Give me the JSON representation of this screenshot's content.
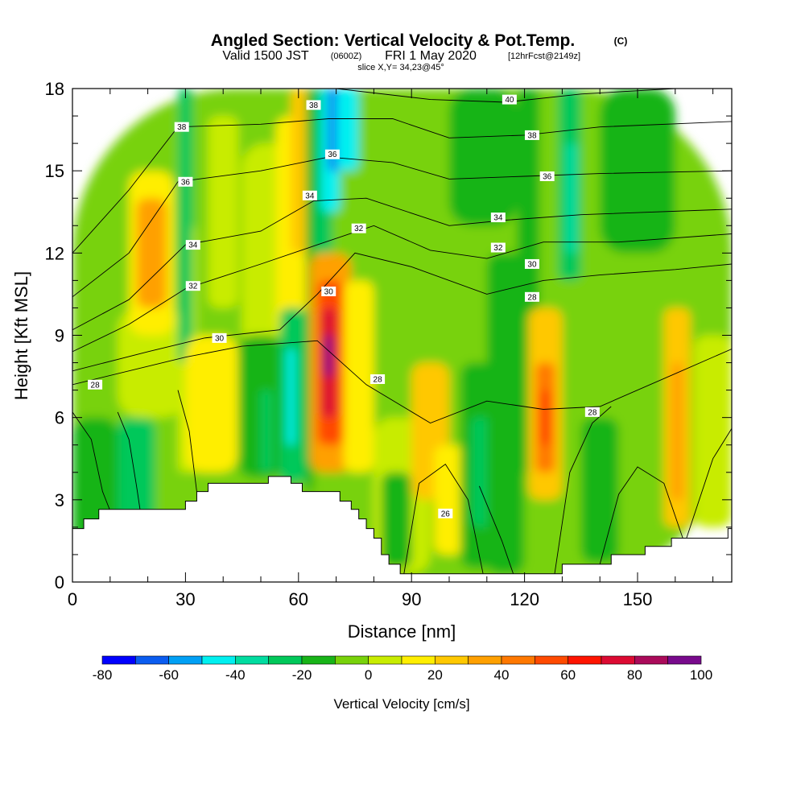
{
  "header": {
    "title_main": "Angled Section: Vertical Velocity & Pot.Temp.",
    "title_unit": "(C)",
    "valid_a": "Valid 1500 JST",
    "valid_b": "(0600Z)",
    "valid_c": "FRI 1 May 2020",
    "valid_d": "[12hrFcst@2149z]",
    "slice": "slice X,Y= 34,23@45°"
  },
  "chart_data": {
    "type": "heatmap",
    "xlabel": "Distance [nm]",
    "ylabel": "Height [Kft MSL]",
    "xlim": [
      0,
      175
    ],
    "ylim": [
      0,
      18
    ],
    "x_ticks": [
      "0",
      "30",
      "60",
      "90",
      "120",
      "150"
    ],
    "y_ticks": [
      "0",
      "3",
      "6",
      "9",
      "12",
      "15",
      "18"
    ],
    "colorbar": {
      "title": "Vertical Velocity [cm/s]",
      "ticks": [
        "-80",
        "-60",
        "-40",
        "-20",
        "0",
        "20",
        "40",
        "60",
        "80",
        "100"
      ],
      "levels": [
        -80,
        -70,
        -60,
        -50,
        -40,
        -30,
        -20,
        -10,
        0,
        10,
        20,
        30,
        40,
        50,
        60,
        70,
        80,
        90,
        100
      ],
      "colors": [
        "#0000ff",
        "#0a5cf0",
        "#00a0f5",
        "#00f0f0",
        "#00dca0",
        "#00c85a",
        "#18b418",
        "#78d20a",
        "#c8ec00",
        "#ffee00",
        "#ffc800",
        "#ffa000",
        "#ff7800",
        "#ff4a00",
        "#ff1400",
        "#dc0a32",
        "#aa0a5a",
        "#780a8c"
      ]
    },
    "terrain_kft": [
      [
        0,
        1.95
      ],
      [
        3,
        2.3
      ],
      [
        7,
        2.65
      ],
      [
        30,
        2.95
      ],
      [
        33,
        3.3
      ],
      [
        36,
        3.6
      ],
      [
        52,
        3.85
      ],
      [
        58,
        3.6
      ],
      [
        61,
        3.3
      ],
      [
        71,
        2.95
      ],
      [
        74,
        2.65
      ],
      [
        76,
        2.3
      ],
      [
        78,
        1.95
      ],
      [
        80,
        1.6
      ],
      [
        82,
        1.0
      ],
      [
        84,
        0.65
      ],
      [
        87,
        0.3
      ],
      [
        129,
        0.3
      ],
      [
        130,
        0.65
      ],
      [
        142,
        0.65
      ],
      [
        143,
        1.0
      ],
      [
        151,
        1.0
      ],
      [
        152,
        1.3
      ],
      [
        159,
        1.6
      ],
      [
        173,
        1.6
      ],
      [
        174,
        1.95
      ]
    ],
    "velocity_cells": [
      {
        "x": [
          0,
          175
        ],
        "y": [
          0,
          18
        ],
        "v": -5
      },
      {
        "x": [
          0,
          12
        ],
        "y": [
          0,
          6
        ],
        "v": -15
      },
      {
        "x": [
          12,
          22
        ],
        "y": [
          2,
          6
        ],
        "v": -25
      },
      {
        "x": [
          12,
          30
        ],
        "y": [
          6,
          10
        ],
        "v": 5
      },
      {
        "x": [
          15,
          27
        ],
        "y": [
          9,
          15
        ],
        "v": 15
      },
      {
        "x": [
          17,
          25
        ],
        "y": [
          10,
          14
        ],
        "v": 30
      },
      {
        "x": [
          28,
          33
        ],
        "y": [
          4,
          13
        ],
        "v": 5
      },
      {
        "x": [
          28,
          32
        ],
        "y": [
          8,
          18
        ],
        "v": -25
      },
      {
        "x": [
          30,
          44
        ],
        "y": [
          4,
          9
        ],
        "v": 15
      },
      {
        "x": [
          36,
          44
        ],
        "y": [
          10,
          17
        ],
        "v": 5
      },
      {
        "x": [
          45,
          64
        ],
        "y": [
          5,
          16
        ],
        "v": 5
      },
      {
        "x": [
          54,
          64
        ],
        "y": [
          9,
          17
        ],
        "v": 15
      },
      {
        "x": [
          58,
          64
        ],
        "y": [
          12,
          18
        ],
        "v": 25
      },
      {
        "x": [
          44,
          56
        ],
        "y": [
          3.8,
          9
        ],
        "v": -15
      },
      {
        "x": [
          50,
          53
        ],
        "y": [
          4,
          7
        ],
        "v": -25
      },
      {
        "x": [
          55,
          62
        ],
        "y": [
          3.6,
          10
        ],
        "v": -30
      },
      {
        "x": [
          57,
          59
        ],
        "y": [
          5,
          8.5
        ],
        "v": -45
      },
      {
        "x": [
          62,
          64
        ],
        "y": [
          3.3,
          18
        ],
        "v": -15
      },
      {
        "x": [
          64,
          69
        ],
        "y": [
          12,
          18
        ],
        "v": -30
      },
      {
        "x": [
          66,
          71
        ],
        "y": [
          13.5,
          18
        ],
        "v": -45
      },
      {
        "x": [
          68,
          71
        ],
        "y": [
          15,
          18
        ],
        "v": -65
      },
      {
        "x": [
          70,
          76
        ],
        "y": [
          15,
          18
        ],
        "v": -45
      },
      {
        "x": [
          63,
          74
        ],
        "y": [
          4,
          12
        ],
        "v": 35
      },
      {
        "x": [
          65,
          72
        ],
        "y": [
          5,
          11
        ],
        "v": 55
      },
      {
        "x": [
          66,
          70
        ],
        "y": [
          6,
          10
        ],
        "v": 75
      },
      {
        "x": [
          67,
          69
        ],
        "y": [
          7.5,
          9
        ],
        "v": 95
      },
      {
        "x": [
          72,
          80
        ],
        "y": [
          4,
          11
        ],
        "v": 15
      },
      {
        "x": [
          80,
          95
        ],
        "y": [
          0.3,
          6
        ],
        "v": 5
      },
      {
        "x": [
          82,
          90
        ],
        "y": [
          0.5,
          4
        ],
        "v": -15
      },
      {
        "x": [
          90,
          100
        ],
        "y": [
          3,
          8
        ],
        "v": 25
      },
      {
        "x": [
          96,
          104
        ],
        "y": [
          1,
          5
        ],
        "v": 15
      },
      {
        "x": [
          103,
          113
        ],
        "y": [
          0.5,
          8
        ],
        "v": -15
      },
      {
        "x": [
          106,
          111
        ],
        "y": [
          2,
          6
        ],
        "v": -25
      },
      {
        "x": [
          110,
          120
        ],
        "y": [
          0.3,
          12
        ],
        "v": -15
      },
      {
        "x": [
          118,
          124
        ],
        "y": [
          4,
          18
        ],
        "v": -15
      },
      {
        "x": [
          121,
          130
        ],
        "y": [
          3,
          10
        ],
        "v": 25
      },
      {
        "x": [
          123,
          128
        ],
        "y": [
          4,
          8
        ],
        "v": 45
      },
      {
        "x": [
          124,
          127
        ],
        "y": [
          5,
          7
        ],
        "v": 55
      },
      {
        "x": [
          129,
          135
        ],
        "y": [
          11,
          18
        ],
        "v": -25
      },
      {
        "x": [
          131,
          134
        ],
        "y": [
          12,
          16
        ],
        "v": -35
      },
      {
        "x": [
          135,
          145
        ],
        "y": [
          0.7,
          6
        ],
        "v": -15
      },
      {
        "x": [
          145,
          156
        ],
        "y": [
          1,
          7
        ],
        "v": -5
      },
      {
        "x": [
          157,
          164
        ],
        "y": [
          2,
          10
        ],
        "v": 25
      },
      {
        "x": [
          159,
          162
        ],
        "y": [
          3,
          8
        ],
        "v": 35
      },
      {
        "x": [
          165,
          175
        ],
        "y": [
          2,
          9
        ],
        "v": 5
      },
      {
        "x": [
          140,
          160
        ],
        "y": [
          12,
          18
        ],
        "v": -15
      },
      {
        "x": [
          100,
          118
        ],
        "y": [
          13,
          18
        ],
        "v": -15
      }
    ],
    "isentropes": [
      {
        "label": "28",
        "pts": [
          [
            0,
            7.2
          ],
          [
            30,
            8.2
          ],
          [
            45,
            8.6
          ],
          [
            65,
            8.8
          ],
          [
            78,
            7.2
          ],
          [
            95,
            5.8
          ],
          [
            110,
            6.6
          ],
          [
            125,
            6.3
          ],
          [
            140,
            6.4
          ],
          [
            160,
            7.6
          ],
          [
            175,
            8.5
          ]
        ],
        "lx": 6,
        "ly": 7.2
      },
      {
        "label": "30",
        "pts": [
          [
            0,
            7.7
          ],
          [
            20,
            8.4
          ],
          [
            35,
            8.9
          ],
          [
            55,
            9.2
          ],
          [
            65,
            10.5
          ],
          [
            75,
            12.0
          ],
          [
            90,
            11.5
          ],
          [
            110,
            10.5
          ],
          [
            125,
            11.0
          ],
          [
            140,
            11.2
          ],
          [
            160,
            11.4
          ],
          [
            175,
            11.6
          ]
        ],
        "lx": 39,
        "ly": 8.9
      },
      {
        "label": "32",
        "pts": [
          [
            0,
            8.4
          ],
          [
            15,
            9.4
          ],
          [
            30,
            10.7
          ],
          [
            50,
            11.6
          ],
          [
            65,
            12.3
          ],
          [
            80,
            13.0
          ],
          [
            95,
            12.1
          ],
          [
            110,
            11.8
          ],
          [
            125,
            12.4
          ],
          [
            145,
            12.4
          ],
          [
            175,
            12.7
          ]
        ],
        "lx": 32,
        "ly": 10.8
      },
      {
        "label": "34",
        "pts": [
          [
            0,
            9.2
          ],
          [
            15,
            10.3
          ],
          [
            30,
            12.3
          ],
          [
            50,
            12.8
          ],
          [
            64,
            13.9
          ],
          [
            78,
            14.0
          ],
          [
            100,
            13.0
          ],
          [
            115,
            13.2
          ],
          [
            135,
            13.4
          ],
          [
            175,
            13.6
          ]
        ],
        "lx": 32,
        "ly": 12.3
      },
      {
        "label": "36",
        "pts": [
          [
            0,
            10.4
          ],
          [
            15,
            12.0
          ],
          [
            28,
            14.6
          ],
          [
            50,
            15.0
          ],
          [
            68,
            15.5
          ],
          [
            85,
            15.3
          ],
          [
            100,
            14.7
          ],
          [
            120,
            14.8
          ],
          [
            140,
            14.9
          ],
          [
            175,
            15.0
          ]
        ],
        "lx": 30,
        "ly": 14.6
      },
      {
        "label": "38",
        "pts": [
          [
            0,
            12.0
          ],
          [
            15,
            14.3
          ],
          [
            28,
            16.6
          ],
          [
            50,
            16.7
          ],
          [
            68,
            16.9
          ],
          [
            85,
            16.9
          ],
          [
            100,
            16.2
          ],
          [
            120,
            16.3
          ],
          [
            140,
            16.6
          ],
          [
            175,
            16.8
          ]
        ],
        "lx": 29,
        "ly": 16.6
      },
      {
        "label": "40",
        "pts": [
          [
            70,
            18.0
          ],
          [
            95,
            17.6
          ],
          [
            115,
            17.5
          ],
          [
            135,
            17.8
          ],
          [
            160,
            18.0
          ]
        ],
        "lx": 116,
        "ly": 17.6
      }
    ],
    "extra_lines": [
      {
        "pts": [
          [
            0,
            6.2
          ],
          [
            5,
            5.2
          ],
          [
            8,
            3.3
          ],
          [
            10,
            2.6
          ]
        ]
      },
      {
        "pts": [
          [
            12,
            6.2
          ],
          [
            15,
            5.2
          ],
          [
            17,
            3.5
          ],
          [
            18,
            2.6
          ]
        ]
      },
      {
        "pts": [
          [
            28,
            7.0
          ],
          [
            31,
            5.5
          ],
          [
            33,
            3.3
          ]
        ]
      },
      {
        "pts": [
          [
            88,
            0.3
          ],
          [
            92,
            3.6
          ],
          [
            99,
            4.3
          ],
          [
            105,
            3.0
          ],
          [
            109,
            0.3
          ]
        ]
      },
      {
        "pts": [
          [
            108,
            3.5
          ],
          [
            114,
            1.5
          ],
          [
            117,
            0.3
          ]
        ]
      },
      {
        "pts": [
          [
            128,
            0.3
          ],
          [
            132,
            4.0
          ],
          [
            138,
            5.8
          ],
          [
            143,
            6.4
          ]
        ]
      },
      {
        "pts": [
          [
            140,
            0.65
          ],
          [
            145,
            3.2
          ],
          [
            150,
            4.2
          ],
          [
            157,
            3.6
          ],
          [
            162,
            1.6
          ]
        ]
      },
      {
        "pts": [
          [
            163,
            1.6
          ],
          [
            170,
            4.5
          ],
          [
            175,
            5.6
          ]
        ]
      }
    ],
    "extra_labels": [
      {
        "label": "38",
        "x": 64,
        "y": 17.4
      },
      {
        "label": "36",
        "x": 69,
        "y": 15.6
      },
      {
        "label": "34",
        "x": 63,
        "y": 14.1
      },
      {
        "label": "32",
        "x": 76,
        "y": 12.9
      },
      {
        "label": "30",
        "x": 68,
        "y": 10.6
      },
      {
        "label": "28",
        "x": 81,
        "y": 7.4
      },
      {
        "label": "26",
        "x": 99,
        "y": 2.5
      },
      {
        "label": "38",
        "x": 122,
        "y": 16.3
      },
      {
        "label": "36",
        "x": 126,
        "y": 14.8
      },
      {
        "label": "34",
        "x": 113,
        "y": 13.3
      },
      {
        "label": "32",
        "x": 113,
        "y": 12.2
      },
      {
        "label": "30",
        "x": 122,
        "y": 11.6
      },
      {
        "label": "28",
        "x": 122,
        "y": 10.4
      },
      {
        "label": "28",
        "x": 138,
        "y": 6.2
      }
    ]
  }
}
